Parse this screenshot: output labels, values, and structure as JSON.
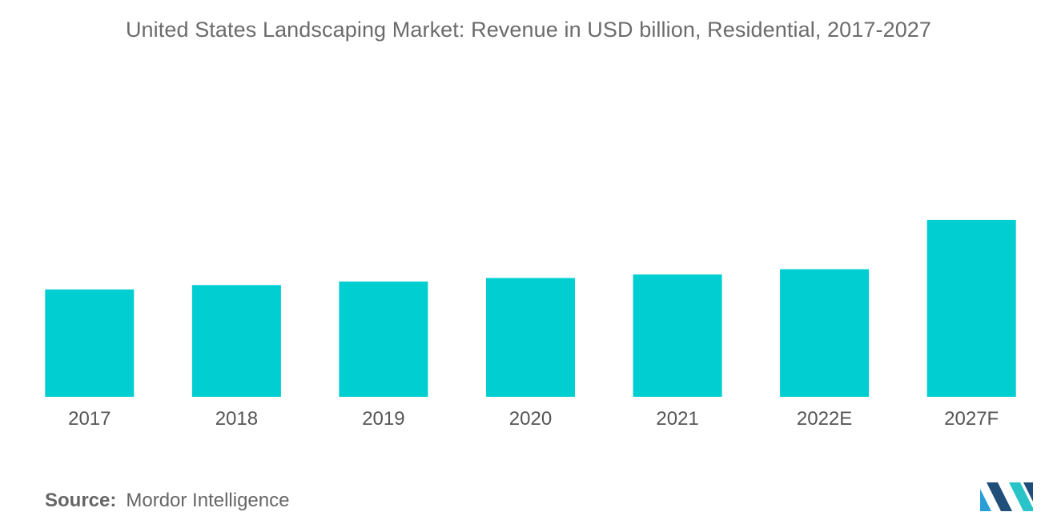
{
  "chart_data": {
    "type": "bar",
    "title": "United States Landscaping Market: Revenue in USD billion, Residential, 2017-2027",
    "categories": [
      "2017",
      "2018",
      "2019",
      "2020",
      "2021",
      "2022E",
      "2027F"
    ],
    "values": [
      61,
      63.5,
      65.5,
      67.5,
      69.5,
      72.5,
      100.5
    ],
    "xlabel": "",
    "ylabel": "",
    "ylim": [
      0,
      110
    ],
    "grid": false,
    "legend": "none",
    "bar_color": "#00ced1"
  },
  "source": {
    "label": "Source:",
    "value": "Mordor Intelligence"
  },
  "logo": {
    "icon": "mordor-intelligence-logo",
    "colors": [
      "#2a9fd6",
      "#1f4e79",
      "#29c4c8"
    ]
  }
}
